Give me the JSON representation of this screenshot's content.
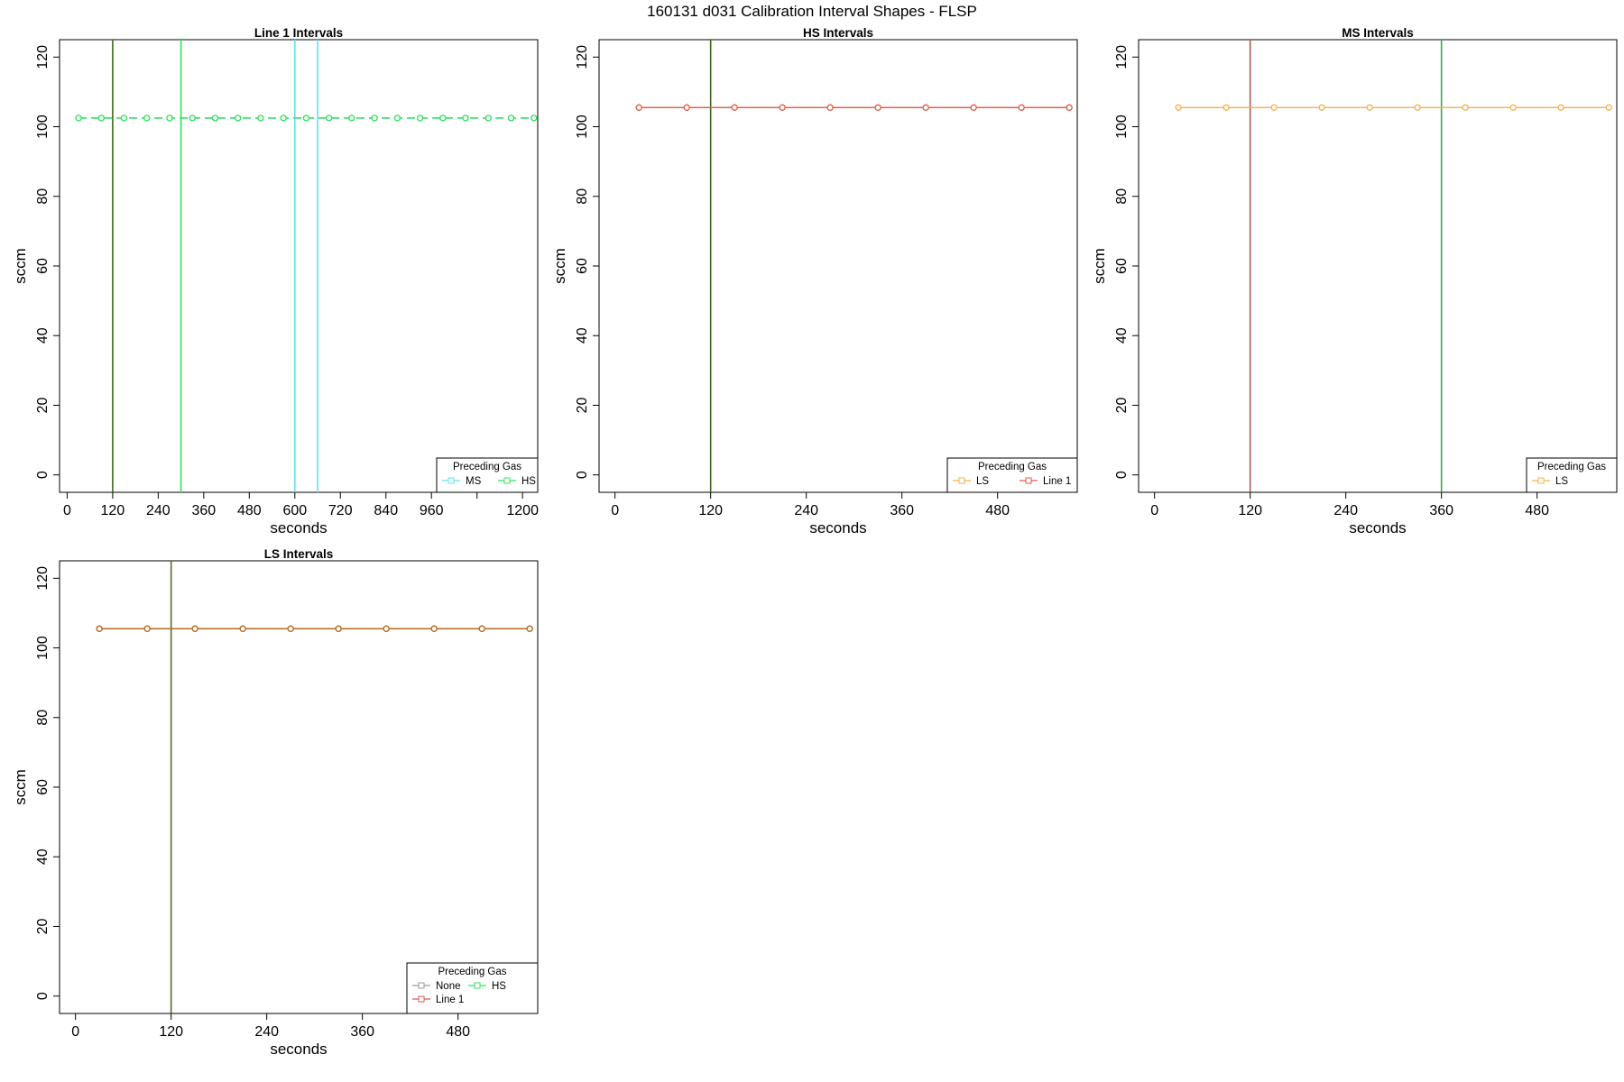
{
  "figure": {
    "title": "160131   d031   Calibration Interval Shapes - FLSP"
  },
  "colors": {
    "MS": "#5fe1f6",
    "HS": "#33e35a",
    "LS": "#f6b04a",
    "Line 1": "#e3584e",
    "None": "#9a9a9a",
    "dark_marker": "#556b2f",
    "vline_dark": "#3d6b1a",
    "vline_green": "#3ea845",
    "vline_red": "#b25a5a"
  },
  "chart_data": [
    {
      "type": "line",
      "title": "Line 1 Intervals",
      "xlabel": "seconds",
      "ylabel": "sccm",
      "xlim": [
        -20,
        1240
      ],
      "ylim": [
        -5,
        125
      ],
      "xticks": [
        0,
        120,
        240,
        360,
        480,
        600,
        720,
        840,
        960,
        1080,
        1200
      ],
      "xtick_labels": [
        "0",
        "120",
        "240",
        "360",
        "480",
        "600",
        "720",
        "840",
        "960",
        "",
        "1200"
      ],
      "yticks": [
        0,
        20,
        40,
        60,
        80,
        100,
        120
      ],
      "vlines": [
        {
          "x": 120,
          "color": "#3d6b1a"
        },
        {
          "x": 300,
          "color": "#33e35a"
        },
        {
          "x": 600,
          "color": "#5fe1f6"
        },
        {
          "x": 660,
          "color": "#5fe1f6"
        }
      ],
      "series": [
        {
          "name": "MS",
          "color": "#5fe1f6",
          "style": "dash",
          "x": [
            30,
            90,
            150,
            210,
            270,
            330,
            390,
            450,
            510,
            570,
            630,
            690,
            750,
            810,
            870,
            930,
            990,
            1050,
            1110,
            1170,
            1230
          ],
          "y": [
            102.5,
            102.5,
            102.5,
            102.5,
            102.5,
            102.5,
            102.5,
            102.5,
            102.5,
            102.5,
            102.5,
            102.5,
            102.5,
            102.5,
            102.5,
            102.5,
            102.5,
            102.5,
            102.5,
            102.5,
            102.5
          ]
        },
        {
          "name": "HS",
          "color": "#33e35a",
          "style": "dash",
          "x": [
            30,
            90,
            150,
            210,
            270,
            330,
            390,
            450,
            510,
            570,
            630,
            690,
            750,
            810,
            870,
            930,
            990,
            1050,
            1110,
            1170,
            1230
          ],
          "y": [
            102.5,
            102.5,
            102.5,
            102.5,
            102.5,
            102.5,
            102.5,
            102.5,
            102.5,
            102.5,
            102.5,
            102.5,
            102.5,
            102.5,
            102.5,
            102.5,
            102.5,
            102.5,
            102.5,
            102.5,
            102.5
          ]
        }
      ],
      "legend": {
        "title": "Preceding Gas",
        "position": "bottom-right",
        "items": [
          {
            "label": "MS",
            "key": "MS"
          },
          {
            "label": "HS",
            "key": "HS"
          }
        ]
      }
    },
    {
      "type": "line",
      "title": "HS Intervals",
      "xlabel": "seconds",
      "ylabel": "sccm",
      "xlim": [
        -20,
        580
      ],
      "ylim": [
        -5,
        125
      ],
      "xticks": [
        0,
        120,
        240,
        360,
        480
      ],
      "xtick_labels": [
        "0",
        "120",
        "240",
        "360",
        "480"
      ],
      "yticks": [
        0,
        20,
        40,
        60,
        80,
        100,
        120
      ],
      "vlines": [
        {
          "x": 120,
          "color": "#3d6b1a"
        }
      ],
      "series": [
        {
          "name": "LS",
          "color": "#f6b04a",
          "style": "solid",
          "x": [
            30,
            90,
            150,
            210,
            270,
            330,
            390,
            450,
            510,
            570
          ],
          "y": [
            105.5,
            105.5,
            105.5,
            105.5,
            105.5,
            105.5,
            105.5,
            105.5,
            105.5,
            105.5
          ]
        },
        {
          "name": "Line 1",
          "color": "#e3584e",
          "style": "solid",
          "x": [
            30,
            90,
            150,
            210,
            270,
            330,
            390,
            450,
            510,
            570
          ],
          "y": [
            105.5,
            105.5,
            105.5,
            105.5,
            105.5,
            105.5,
            105.5,
            105.5,
            105.5,
            105.5
          ]
        }
      ],
      "legend": {
        "title": "Preceding Gas",
        "position": "bottom-right",
        "items": [
          {
            "label": "LS",
            "key": "LS"
          },
          {
            "label": "Line 1",
            "key": "Line 1"
          }
        ]
      }
    },
    {
      "type": "line",
      "title": "MS Intervals",
      "xlabel": "seconds",
      "ylabel": "sccm",
      "xlim": [
        -20,
        580
      ],
      "ylim": [
        -5,
        125
      ],
      "xticks": [
        0,
        120,
        240,
        360,
        480
      ],
      "xtick_labels": [
        "0",
        "120",
        "240",
        "360",
        "480"
      ],
      "yticks": [
        0,
        20,
        40,
        60,
        80,
        100,
        120
      ],
      "vlines": [
        {
          "x": 120,
          "color": "#b25a5a"
        },
        {
          "x": 360,
          "color": "#3ea845"
        }
      ],
      "series": [
        {
          "name": "LS",
          "color": "#f6b04a",
          "style": "solid",
          "x": [
            30,
            90,
            150,
            210,
            270,
            330,
            390,
            450,
            510,
            570
          ],
          "y": [
            105.5,
            105.5,
            105.5,
            105.5,
            105.5,
            105.5,
            105.5,
            105.5,
            105.5,
            105.5
          ]
        }
      ],
      "legend": {
        "title": "Preceding Gas",
        "position": "bottom-right",
        "items": [
          {
            "label": "LS",
            "key": "LS"
          }
        ]
      }
    },
    {
      "type": "line",
      "title": "LS Intervals",
      "xlabel": "seconds",
      "ylabel": "sccm",
      "xlim": [
        -20,
        580
      ],
      "ylim": [
        -5,
        125
      ],
      "xticks": [
        0,
        120,
        240,
        360,
        480
      ],
      "xtick_labels": [
        "0",
        "120",
        "240",
        "360",
        "480"
      ],
      "yticks": [
        0,
        20,
        40,
        60,
        80,
        100,
        120
      ],
      "vlines": [
        {
          "x": 120,
          "color": "#556b2f"
        }
      ],
      "series": [
        {
          "name": "None",
          "color": "#9a9a9a",
          "style": "solid",
          "x": [
            30,
            90,
            150,
            210,
            270,
            330,
            390,
            450,
            510,
            570
          ],
          "y": [
            105.5,
            105.5,
            105.5,
            105.5,
            105.5,
            105.5,
            105.5,
            105.5,
            105.5,
            105.5
          ]
        },
        {
          "name": "HS",
          "color": "#33e35a",
          "style": "solid",
          "x": [
            30,
            90,
            150,
            210,
            270,
            330,
            390,
            450,
            510,
            570
          ],
          "y": [
            105.5,
            105.5,
            105.5,
            105.5,
            105.5,
            105.5,
            105.5,
            105.5,
            105.5,
            105.5
          ]
        },
        {
          "name": "Line 1",
          "color": "#b8651e",
          "style": "solid",
          "x": [
            30,
            90,
            150,
            210,
            270,
            330,
            390,
            450,
            510,
            570
          ],
          "y": [
            105.5,
            105.5,
            105.5,
            105.5,
            105.5,
            105.5,
            105.5,
            105.5,
            105.5,
            105.5
          ]
        }
      ],
      "legend": {
        "title": "Preceding Gas",
        "position": "bottom-right",
        "items": [
          {
            "label": "None",
            "key": "None"
          },
          {
            "label": "HS",
            "key": "HS"
          },
          {
            "label": "Line 1",
            "key": "Line 1"
          }
        ]
      }
    }
  ]
}
